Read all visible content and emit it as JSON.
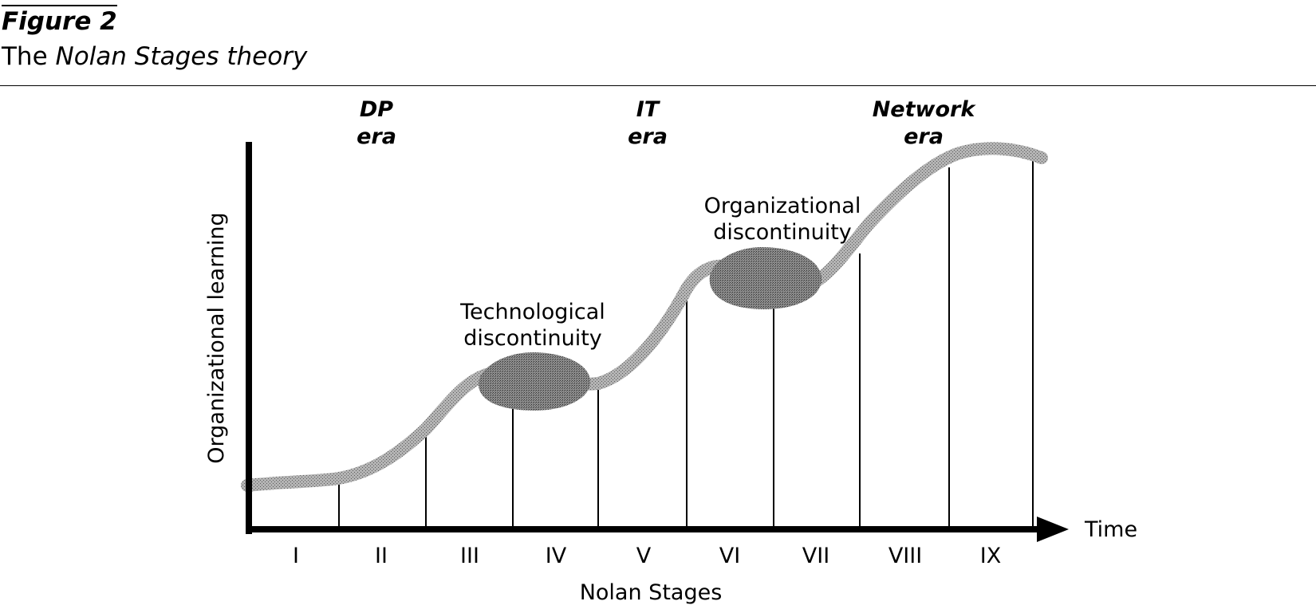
{
  "figure": {
    "label": "Figure 2",
    "caption_prefix": "The ",
    "caption_italic": "Nolan Stages theory"
  },
  "eras": [
    {
      "name": "DP",
      "suffix": "era"
    },
    {
      "name": "IT",
      "suffix": "era"
    },
    {
      "name": "Network",
      "suffix": "era"
    }
  ],
  "axes": {
    "y_label": "Organizational learning",
    "x_arrow_label": "Time",
    "x_title": "Nolan Stages"
  },
  "stages": [
    "I",
    "II",
    "III",
    "IV",
    "V",
    "VI",
    "VII",
    "VIII",
    "IX"
  ],
  "annotations": {
    "technological": [
      "Technological",
      "discontinuity"
    ],
    "organizational": [
      "Organizational",
      "discontinuity"
    ]
  },
  "colors": {
    "ink": "#000000",
    "curve_fill": "#b4b4b4",
    "blob_fill": "#8c8c8c"
  }
}
